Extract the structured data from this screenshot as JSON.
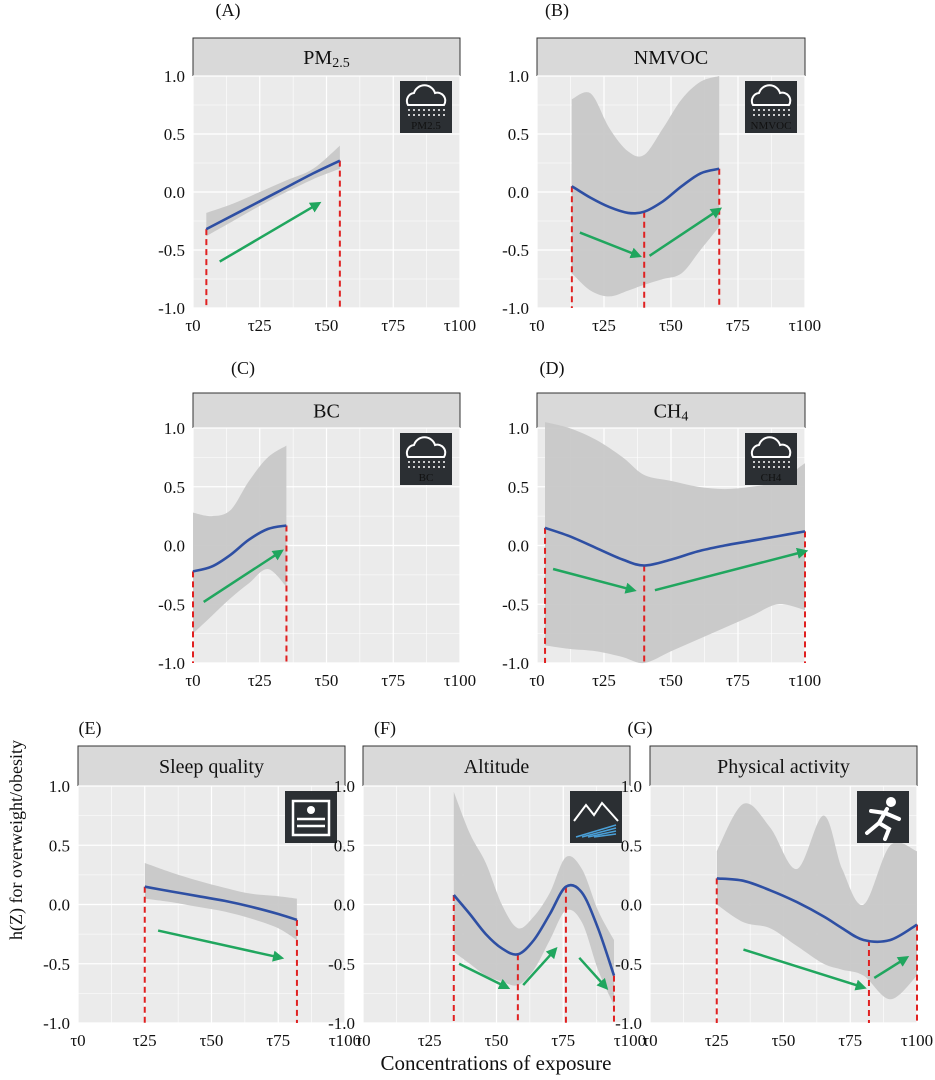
{
  "figure": {
    "ylabel": "h(Z) for overweight/obesity",
    "xlabel": "Concentrations of exposure",
    "y_ticks": [
      "1.0",
      "0.5",
      "0.0",
      "-0.5",
      "-1.0"
    ],
    "x_ticks": [
      "τ0",
      "τ25",
      "τ50",
      "τ75",
      "τ100"
    ]
  },
  "colors": {
    "curve": "#2e4fa3",
    "band": "#c8c8c8",
    "panel_bg": "#ebebeb",
    "strip": "#d9d9d9",
    "arrow": "#20a65e",
    "dashed": "#e02020"
  },
  "chart_data": [
    {
      "type": "line",
      "panel": "(A)",
      "title": "PM2.5",
      "title_main": "PM",
      "title_sub": "2.5",
      "icon": "pm25-cloud-icon",
      "icon_label": "PM2.5",
      "xlim": [
        0,
        100
      ],
      "ylim": [
        -1,
        1
      ],
      "x": [
        5,
        15,
        25,
        35,
        45,
        55
      ],
      "y": [
        -0.32,
        -0.2,
        -0.08,
        0.04,
        0.16,
        0.27
      ],
      "lower": [
        -0.38,
        -0.25,
        -0.12,
        0.0,
        0.11,
        0.2
      ],
      "upper": [
        -0.18,
        -0.1,
        0.0,
        0.1,
        0.2,
        0.4
      ],
      "dashed_x": [
        5,
        55
      ],
      "arrows": [
        [
          10,
          -0.6,
          47,
          -0.1
        ]
      ]
    },
    {
      "type": "line",
      "panel": "(B)",
      "title": "NMVOC",
      "icon": "nmvoc-cloud-icon",
      "icon_label": "NMVOC",
      "xlim": [
        0,
        100
      ],
      "ylim": [
        -1,
        1
      ],
      "x": [
        13,
        20,
        27,
        34,
        40,
        47,
        54,
        61,
        68
      ],
      "y": [
        0.05,
        -0.05,
        -0.13,
        -0.18,
        -0.17,
        -0.08,
        0.05,
        0.16,
        0.2
      ],
      "lower": [
        -0.7,
        -0.85,
        -0.9,
        -0.85,
        -0.8,
        -0.75,
        -0.7,
        -0.5,
        -0.3
      ],
      "upper": [
        0.8,
        0.85,
        0.55,
        0.35,
        0.32,
        0.55,
        0.8,
        0.95,
        1.0
      ],
      "dashed_x": [
        13,
        40,
        68
      ],
      "arrows": [
        [
          16,
          -0.35,
          38,
          -0.55
        ],
        [
          42,
          -0.55,
          68,
          -0.15
        ]
      ]
    },
    {
      "type": "line",
      "panel": "(C)",
      "title": "BC",
      "icon": "bc-cloud-icon",
      "icon_label": "BC",
      "xlim": [
        0,
        100
      ],
      "ylim": [
        -1,
        1
      ],
      "x": [
        0,
        7,
        14,
        21,
        28,
        35
      ],
      "y": [
        -0.22,
        -0.18,
        -0.08,
        0.05,
        0.14,
        0.17
      ],
      "lower": [
        -0.75,
        -0.6,
        -0.45,
        -0.32,
        -0.2,
        -0.35
      ],
      "upper": [
        0.28,
        0.25,
        0.3,
        0.55,
        0.75,
        0.85
      ],
      "dashed_x": [
        0,
        35
      ],
      "arrows": [
        [
          4,
          -0.48,
          33,
          -0.05
        ]
      ]
    },
    {
      "type": "line",
      "panel": "(D)",
      "title": "CH4",
      "title_main": "CH",
      "title_sub": "4",
      "icon": "ch4-cloud-icon",
      "icon_label": "CH4",
      "xlim": [
        0,
        100
      ],
      "ylim": [
        -1,
        1
      ],
      "x": [
        3,
        12,
        22,
        32,
        40,
        50,
        60,
        70,
        80,
        90,
        100
      ],
      "y": [
        0.15,
        0.08,
        -0.02,
        -0.12,
        -0.17,
        -0.12,
        -0.05,
        0.0,
        0.04,
        0.08,
        0.12
      ],
      "lower": [
        -0.85,
        -0.88,
        -0.9,
        -0.95,
        -1.0,
        -0.9,
        -0.8,
        -0.7,
        -0.6,
        -0.5,
        -0.55
      ],
      "upper": [
        1.05,
        1.0,
        0.9,
        0.75,
        0.6,
        0.55,
        0.5,
        0.48,
        0.5,
        0.55,
        0.7
      ],
      "dashed_x": [
        3,
        40,
        100
      ],
      "arrows": [
        [
          6,
          -0.2,
          36,
          -0.38
        ],
        [
          44,
          -0.38,
          100,
          -0.05
        ]
      ]
    },
    {
      "type": "line",
      "panel": "(E)",
      "title": "Sleep quality",
      "icon": "sleep-bed-icon",
      "xlim": [
        0,
        100
      ],
      "ylim": [
        -1,
        1
      ],
      "x": [
        25,
        35,
        45,
        55,
        65,
        75,
        82
      ],
      "y": [
        0.15,
        0.11,
        0.07,
        0.03,
        -0.02,
        -0.08,
        -0.13
      ],
      "lower": [
        0.05,
        0.02,
        -0.02,
        -0.06,
        -0.12,
        -0.2,
        -0.3
      ],
      "upper": [
        0.35,
        0.27,
        0.2,
        0.14,
        0.09,
        0.07,
        0.05
      ],
      "dashed_x": [
        25,
        82
      ],
      "arrows": [
        [
          30,
          -0.22,
          76,
          -0.45
        ]
      ]
    },
    {
      "type": "line",
      "panel": "(F)",
      "title": "Altitude",
      "icon": "mountain-icon",
      "xlim": [
        0,
        100
      ],
      "ylim": [
        -1,
        1
      ],
      "x": [
        34,
        40,
        46,
        52,
        58,
        64,
        70,
        76,
        82,
        88,
        94
      ],
      "y": [
        0.08,
        -0.08,
        -0.25,
        -0.37,
        -0.42,
        -0.3,
        -0.08,
        0.15,
        0.1,
        -0.2,
        -0.6
      ],
      "lower": [
        -0.4,
        -0.5,
        -0.6,
        -0.65,
        -0.68,
        -0.55,
        -0.3,
        -0.05,
        -0.15,
        -0.55,
        -0.85
      ],
      "upper": [
        0.95,
        0.6,
        0.35,
        0.0,
        -0.2,
        -0.1,
        0.1,
        0.4,
        0.3,
        -0.05,
        -0.3
      ],
      "dashed_x": [
        34,
        58,
        76,
        94
      ],
      "arrows": [
        [
          36,
          -0.5,
          54,
          -0.7
        ],
        [
          60,
          -0.68,
          72,
          -0.38
        ],
        [
          81,
          -0.45,
          91,
          -0.7
        ]
      ]
    },
    {
      "type": "line",
      "panel": "(G)",
      "title": "Physical activity",
      "icon": "running-person-icon",
      "xlim": [
        0,
        100
      ],
      "ylim": [
        -1,
        1
      ],
      "x": [
        25,
        35,
        45,
        55,
        65,
        72,
        80,
        90,
        100
      ],
      "y": [
        0.22,
        0.2,
        0.12,
        0.02,
        -0.1,
        -0.2,
        -0.3,
        -0.3,
        -0.17
      ],
      "lower": [
        0.0,
        -0.15,
        -0.2,
        -0.35,
        -0.5,
        -0.55,
        -0.6,
        -0.8,
        -0.6
      ],
      "upper": [
        0.45,
        0.85,
        0.65,
        0.3,
        0.75,
        0.3,
        0.0,
        0.5,
        0.45
      ],
      "dashed_x": [
        25,
        82,
        100
      ],
      "arrows": [
        [
          35,
          -0.38,
          80,
          -0.7
        ],
        [
          84,
          -0.62,
          96,
          -0.45
        ]
      ]
    }
  ]
}
